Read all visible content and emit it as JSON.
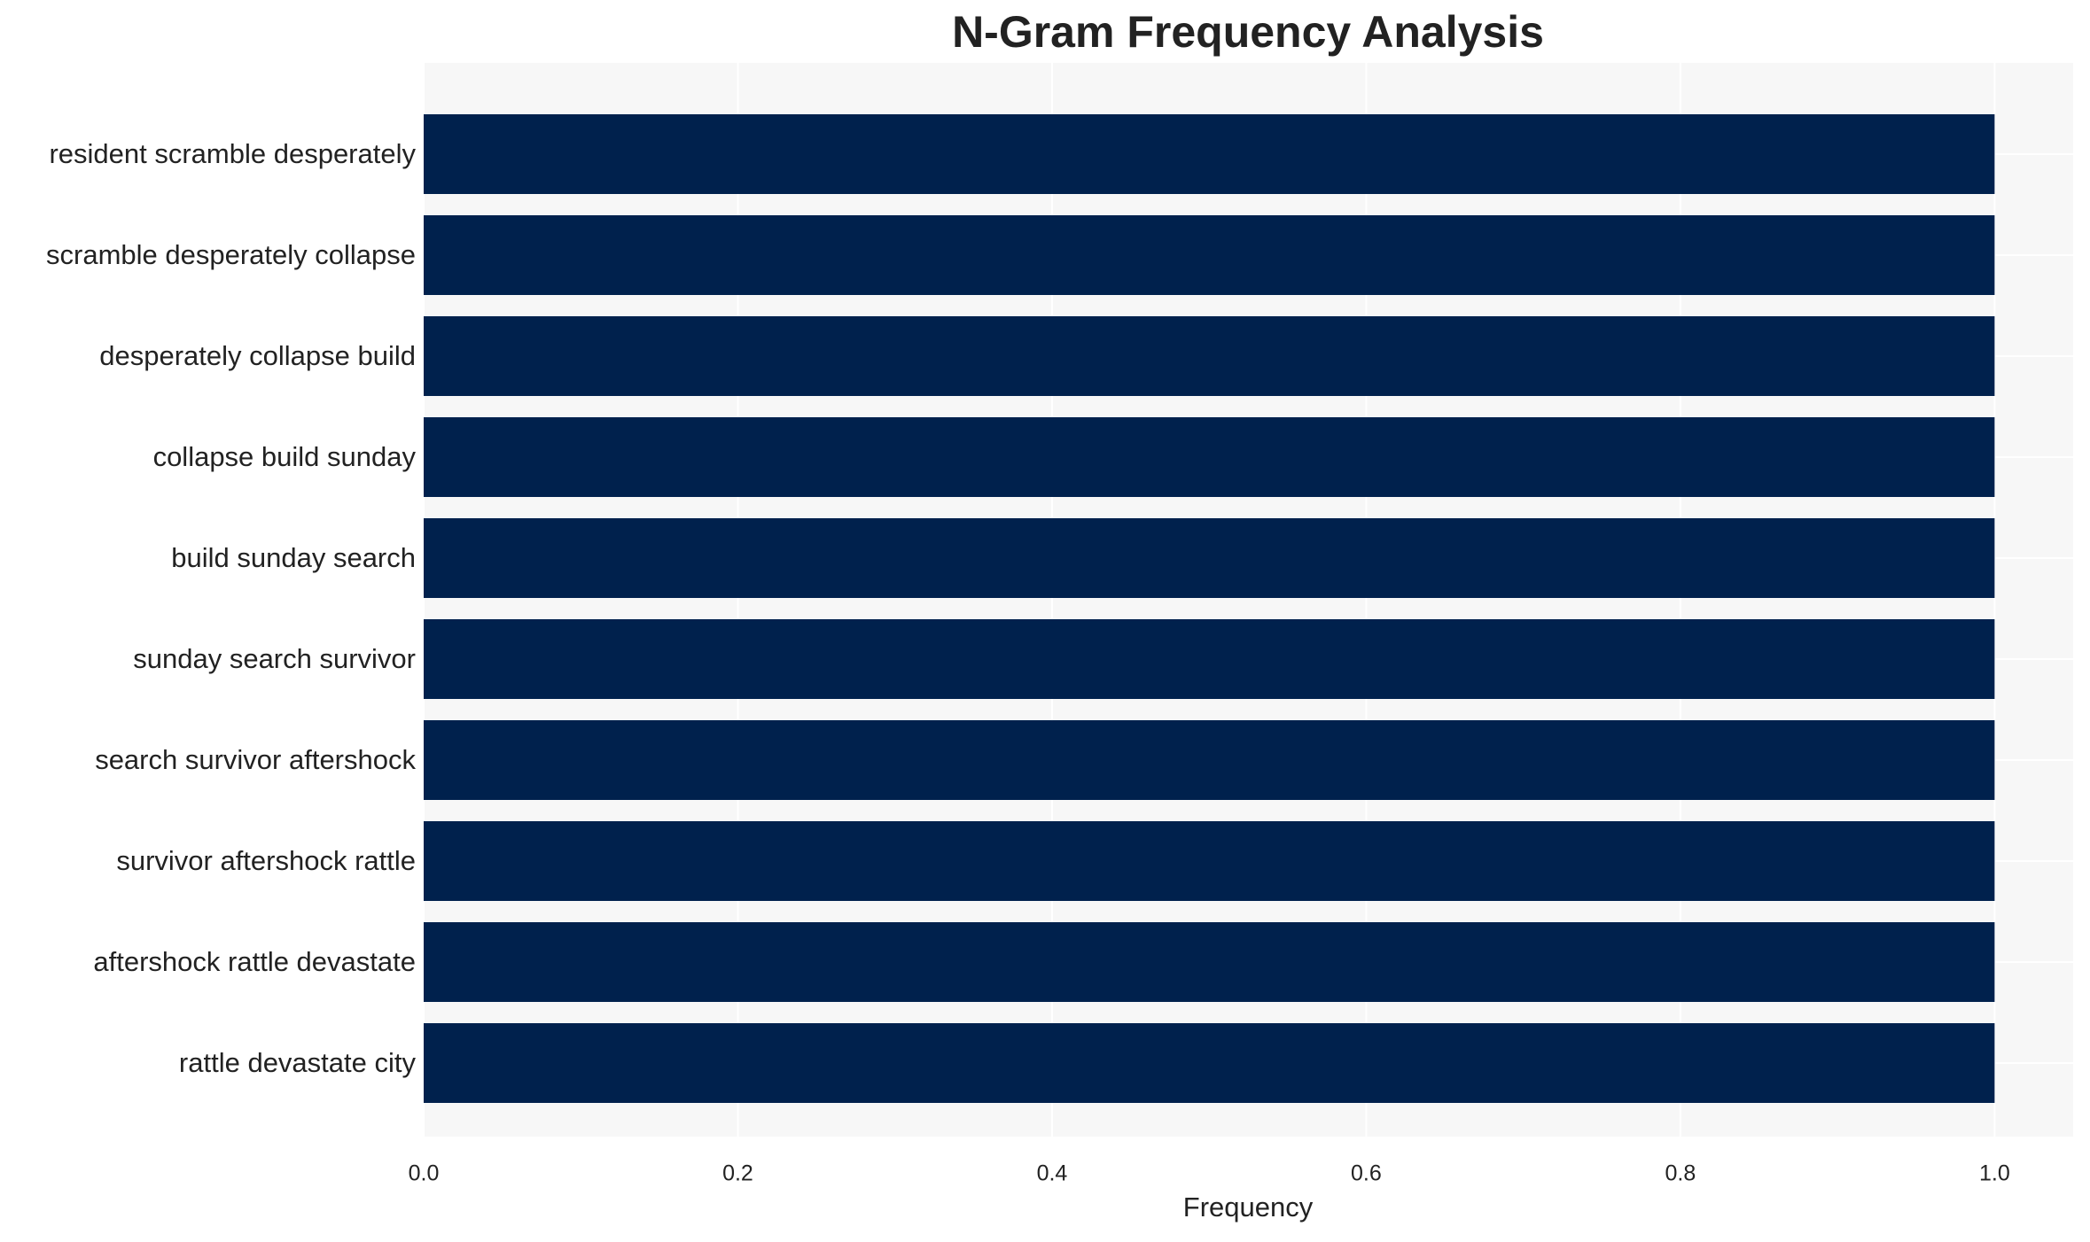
{
  "chart_data": {
    "type": "bar",
    "orientation": "horizontal",
    "title": "N-Gram Frequency Analysis",
    "x_label": "Frequency",
    "categories": [
      "resident scramble desperately",
      "scramble desperately collapse",
      "desperately collapse build",
      "collapse build sunday",
      "build sunday search",
      "sunday search survivor",
      "search survivor aftershock",
      "survivor aftershock rattle",
      "aftershock rattle devastate",
      "rattle devastate city"
    ],
    "values": [
      1,
      1,
      1,
      1,
      1,
      1,
      1,
      1,
      1,
      1
    ],
    "color": "#00214d",
    "xlim": [
      0,
      1.05
    ],
    "xticks": [
      {
        "value": 0,
        "label": "0.0"
      },
      0.2,
      0.4,
      0.6,
      0.8,
      {
        "value": 1,
        "label": "1.0"
      }
    ],
    "grid": true
  }
}
